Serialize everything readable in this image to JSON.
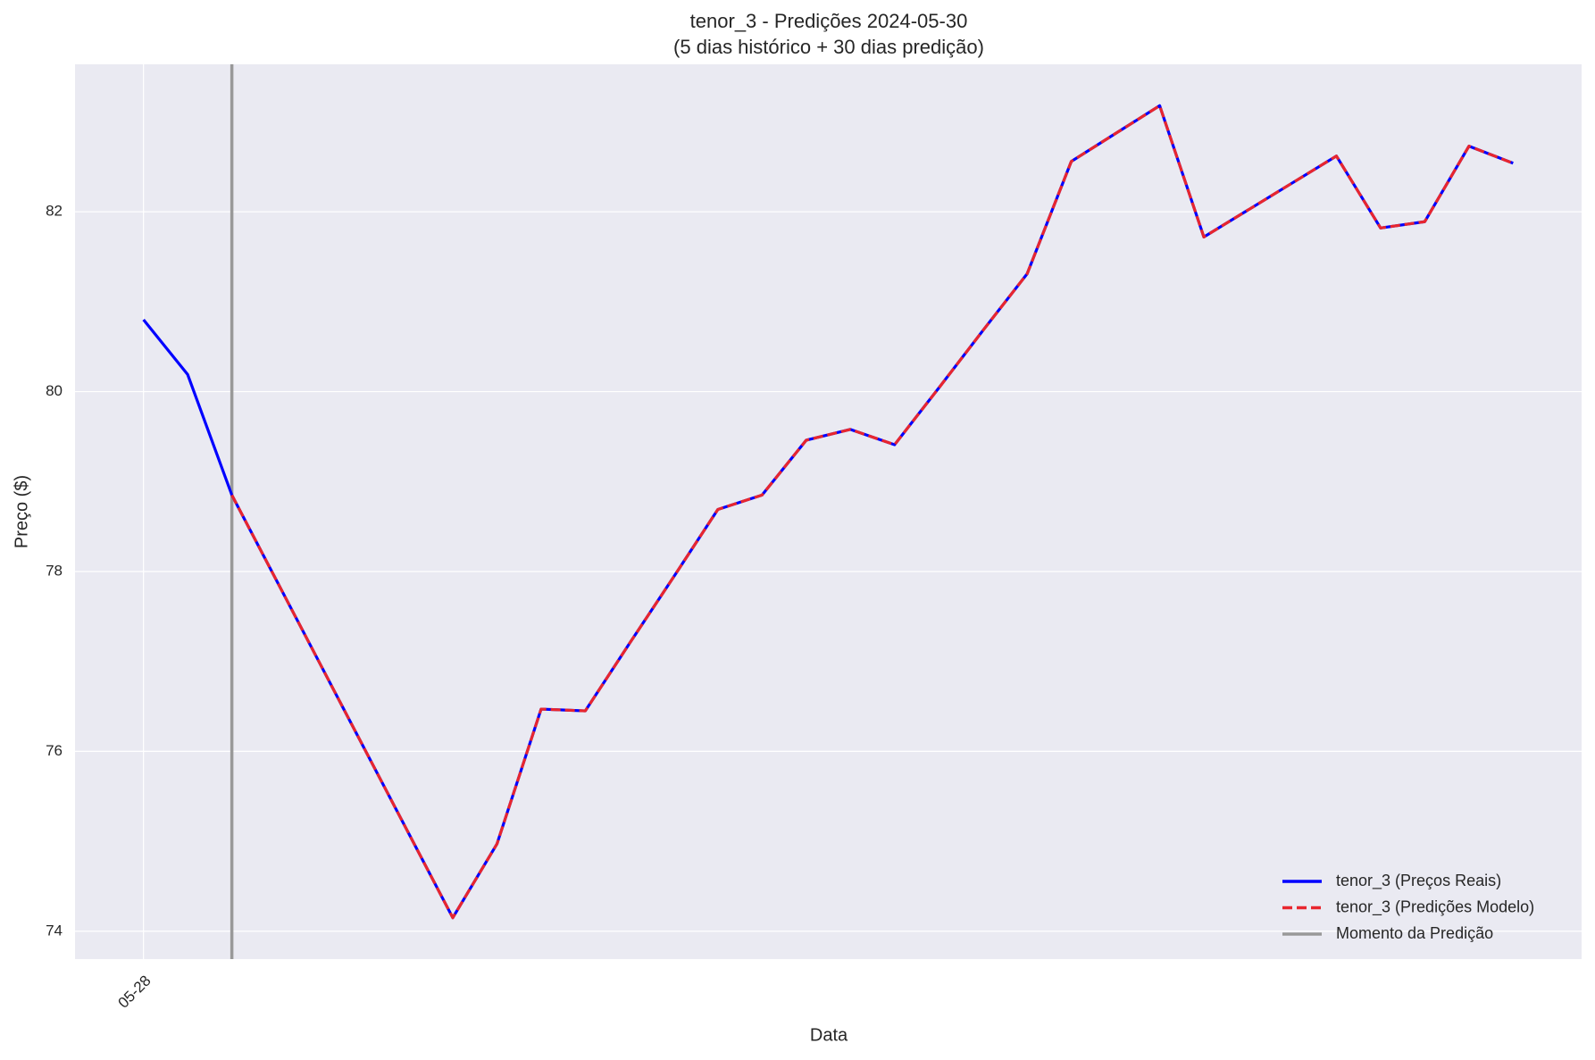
{
  "chart_data": {
    "type": "line",
    "title": "tenor_3 - Predições 2024-05-30",
    "subtitle": "(5 dias histórico + 30 dias predição)",
    "x_label": "Data",
    "y_label": "Preço ($)",
    "categories": [
      "05-28",
      null,
      null,
      null,
      null,
      null,
      null,
      null,
      null,
      null,
      null,
      null,
      null,
      null,
      null,
      null,
      null,
      null,
      null,
      null,
      null,
      null,
      null,
      null,
      null,
      null,
      null,
      null,
      null,
      null,
      null,
      null
    ],
    "series": [
      {
        "name": "tenor_3 (Preços Reais)",
        "color": "#0000ff",
        "dash": false,
        "values": [
          80.8,
          80.19,
          78.85,
          77.91,
          76.97,
          76.03,
          75.09,
          74.15,
          74.97,
          76.47,
          76.45,
          77.2,
          77.94,
          78.69,
          78.85,
          79.46,
          79.58,
          79.41,
          80.04,
          80.68,
          81.31,
          82.56,
          82.87,
          83.18,
          81.72,
          82.02,
          82.32,
          82.62,
          81.82,
          81.89,
          82.73,
          82.54
        ]
      },
      {
        "name": "tenor_3 (Predições Modelo)",
        "color": "#e8262e",
        "dash": true,
        "values": [
          null,
          null,
          78.85,
          77.91,
          76.97,
          76.03,
          75.09,
          74.15,
          74.97,
          76.47,
          76.45,
          77.2,
          77.94,
          78.69,
          78.85,
          79.46,
          79.58,
          79.41,
          80.04,
          80.68,
          81.31,
          82.56,
          82.87,
          83.18,
          81.72,
          82.02,
          82.32,
          82.62,
          81.82,
          81.89,
          82.73,
          82.54
        ]
      }
    ],
    "prediction_moment": {
      "name": "Momento da Predição",
      "index": 2,
      "color": "#999999"
    },
    "xlim": [
      -1.55,
      32.55
    ],
    "ylim": [
      73.69,
      83.64
    ],
    "yticks": [
      74,
      76,
      78,
      80,
      82
    ],
    "grid": true,
    "legend": "lower right"
  }
}
